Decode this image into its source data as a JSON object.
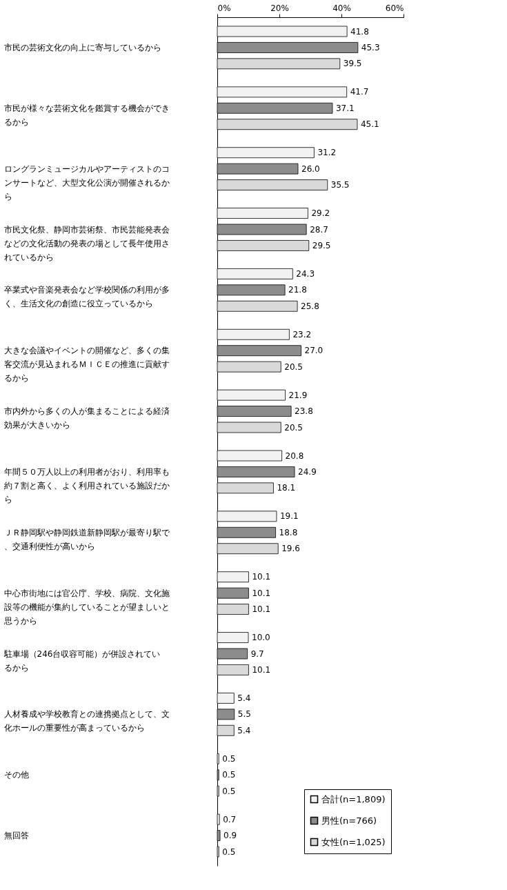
{
  "chart_data": {
    "type": "bar",
    "orientation": "horizontal",
    "categories": [
      "市民の芸術文化の向上に寄与しているから",
      "市民が様々な芸術文化を鑑賞する機会ができるから",
      "ロングランミュージカルやアーティストのコンサートなど、大型文化公演が開催されるから",
      "市民文化祭、静岡市芸術祭、市民芸能発表会などの文化活動の発表の場として長年使用されているから",
      "卒業式や音楽発表会など学校関係の利用が多く、生活文化の創造に役立っているから",
      "大きな会議やイベントの開催など、多くの集客交流が見込まれるＭＩＣＥの推進に貢献するから",
      "市内外から多くの人が集まることによる経済効果が大きいから",
      "年間５０万人以上の利用者がおり、利用率も約７割と高く、よく利用されている施設だから",
      "ＪＲ静岡駅や静岡鉄道新静岡駅が最寄り駅で、交通利便性が高いから",
      "中心市街地には官公庁、学校、病院、文化施設等の機能が集約していることが望ましいと思うから",
      "駐車場（246台収容可能）が併設されているから",
      "人材養成や学校教育との連携拠点として、文化ホールの重要性が高まっているから",
      "その他",
      "無回答"
    ],
    "series": [
      {
        "name": "合計(n=1,809)",
        "color": "#f2f2f2",
        "values": [
          41.8,
          41.7,
          31.2,
          29.2,
          24.3,
          23.2,
          21.9,
          20.8,
          19.1,
          10.1,
          10.0,
          5.4,
          0.5,
          0.7
        ],
        "value_labels": [
          "41.8",
          "41.7",
          "31.2",
          "29.2",
          "24.3",
          "23.2",
          "21.9",
          "20.8",
          "19.1",
          "10.1",
          "10.0",
          "5.4",
          "0.5",
          "0.7"
        ]
      },
      {
        "name": "男性(n=766)",
        "color": "#8c8c8c",
        "values": [
          45.3,
          37.1,
          26.0,
          28.7,
          21.8,
          27.0,
          23.8,
          24.9,
          18.8,
          10.1,
          9.7,
          5.5,
          0.5,
          0.9
        ],
        "value_labels": [
          "45.3",
          "37.1",
          "26.0",
          "28.7",
          "21.8",
          "27.0",
          "23.8",
          "24.9",
          "18.8",
          "10.1",
          "9.7",
          "5.5",
          "0.5",
          "0.9"
        ]
      },
      {
        "name": "女性(n=1,025)",
        "color": "#d9d9d9",
        "values": [
          39.5,
          45.1,
          35.5,
          29.5,
          25.8,
          20.5,
          20.5,
          18.1,
          19.6,
          10.1,
          10.1,
          5.4,
          0.5,
          0.5
        ],
        "value_labels": [
          "39.5",
          "45.1",
          "35.5",
          "29.5",
          "25.8",
          "20.5",
          "20.5",
          "18.1",
          "19.6",
          "10.1",
          "10.1",
          "5.4",
          "0.5",
          "0.5"
        ]
      }
    ],
    "xlim": [
      0,
      60
    ],
    "xticks": [
      {
        "value": 0,
        "label": "0%"
      },
      {
        "value": 20,
        "label": "20%"
      },
      {
        "value": 40,
        "label": "40%"
      },
      {
        "value": 60,
        "label": "60%"
      }
    ],
    "legend": "bottom right",
    "grid": false
  }
}
